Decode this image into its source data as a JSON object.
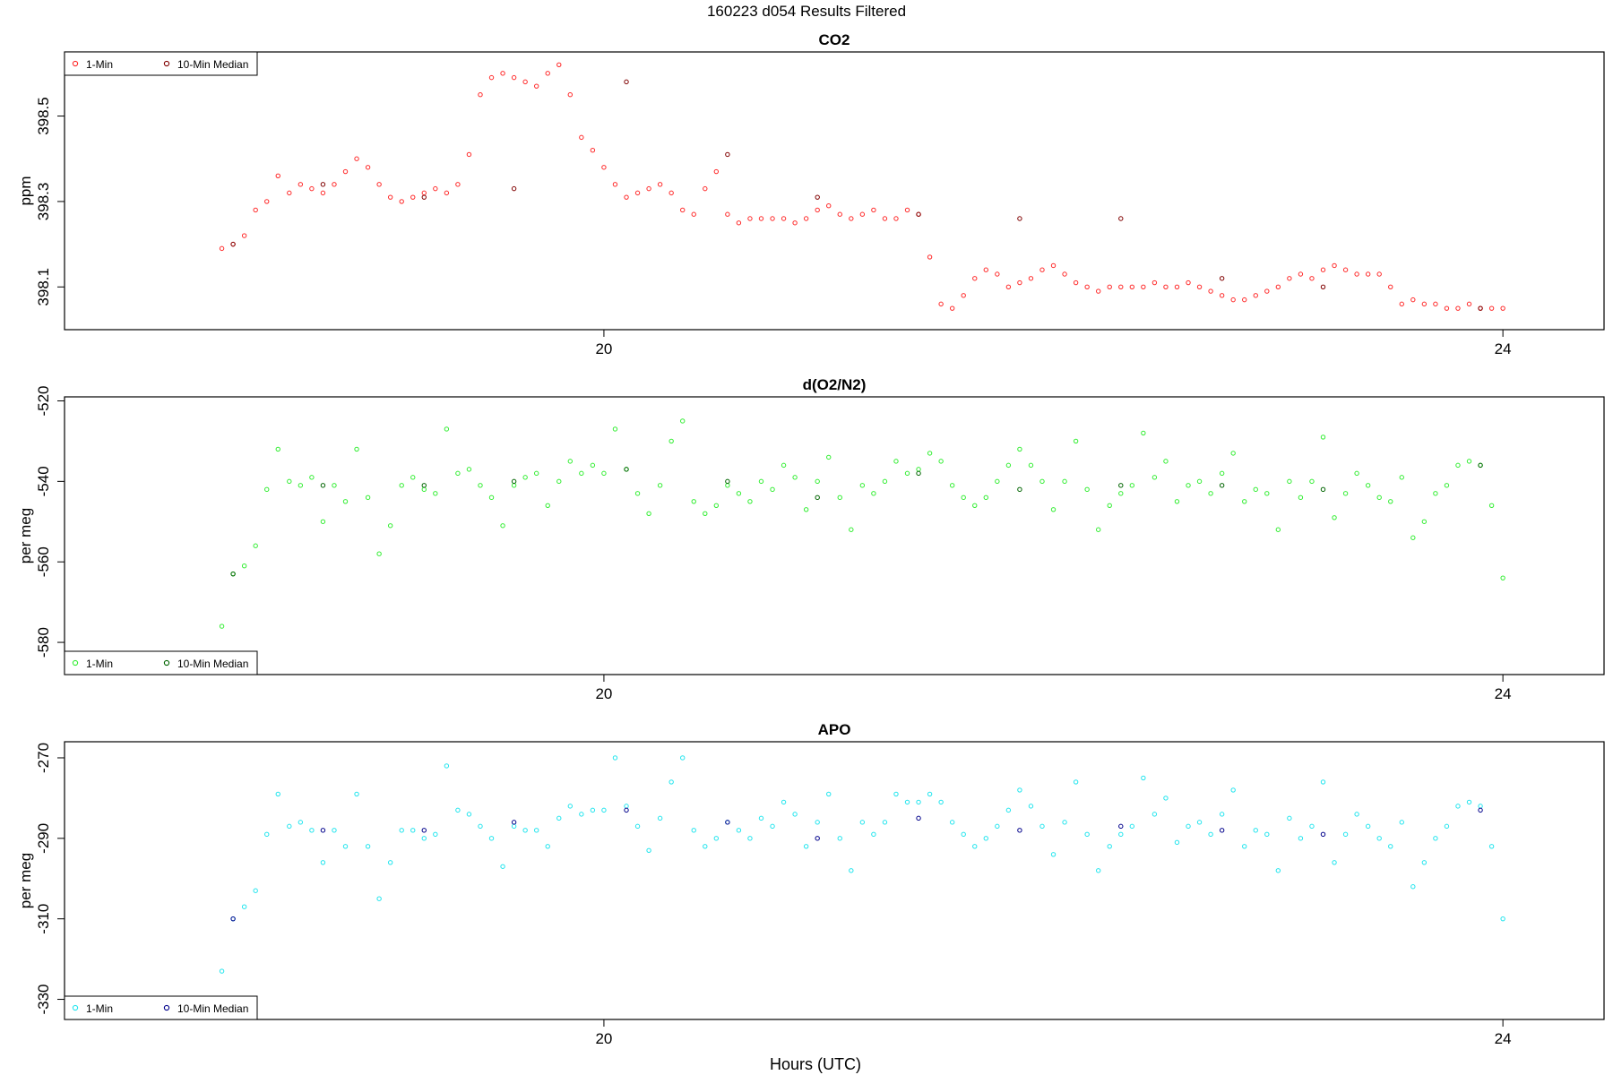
{
  "figure": {
    "title": "160223   d054   Results Filtered",
    "xlabel": "Hours (UTC)"
  },
  "chart_data": [
    {
      "type": "scatter",
      "title": "CO2",
      "ylabel": "ppm",
      "xlim": [
        17.6,
        24.45
      ],
      "ylim": [
        398.0,
        398.65
      ],
      "x_ticks": [
        20,
        24
      ],
      "y_ticks": [
        398.1,
        398.3,
        398.5
      ],
      "legend": {
        "position": "top-left",
        "entries": [
          "1-Min",
          "10-Min Median"
        ]
      },
      "colors": {
        "one_min": "#ff2a2a",
        "median": "#800000"
      },
      "series": [
        {
          "name": "1-Min",
          "x": [
            18.3,
            18.35,
            18.4,
            18.45,
            18.5,
            18.55,
            18.6,
            18.65,
            18.7,
            18.75,
            18.8,
            18.85,
            18.9,
            18.95,
            19.0,
            19.05,
            19.1,
            19.15,
            19.2,
            19.25,
            19.3,
            19.35,
            19.4,
            19.45,
            19.5,
            19.55,
            19.6,
            19.65,
            19.7,
            19.75,
            19.8,
            19.85,
            19.9,
            19.95,
            20.0,
            20.05,
            20.1,
            20.15,
            20.2,
            20.25,
            20.3,
            20.35,
            20.4,
            20.45,
            20.5,
            20.55,
            20.6,
            20.65,
            20.7,
            20.75,
            20.8,
            20.85,
            20.9,
            20.95,
            21.0,
            21.05,
            21.1,
            21.15,
            21.2,
            21.25,
            21.3,
            21.35,
            21.4,
            21.45,
            21.5,
            21.55,
            21.6,
            21.65,
            21.7,
            21.75,
            21.8,
            21.85,
            21.9,
            21.95,
            22.0,
            22.05,
            22.1,
            22.15,
            22.2,
            22.25,
            22.3,
            22.35,
            22.4,
            22.45,
            22.5,
            22.55,
            22.6,
            22.65,
            22.7,
            22.75,
            22.8,
            22.85,
            22.9,
            22.95,
            23.0,
            23.05,
            23.1,
            23.15,
            23.2,
            23.25,
            23.3,
            23.35,
            23.4,
            23.45,
            23.5,
            23.55,
            23.6,
            23.65,
            23.7,
            23.75,
            23.8,
            23.85,
            23.9,
            23.95,
            24.0
          ],
          "y": [
            398.19,
            398.2,
            398.22,
            398.28,
            398.3,
            398.36,
            398.32,
            398.34,
            398.33,
            398.32,
            398.34,
            398.37,
            398.4,
            398.38,
            398.34,
            398.31,
            398.3,
            398.31,
            398.32,
            398.33,
            398.32,
            398.34,
            398.41,
            398.55,
            398.59,
            398.6,
            398.59,
            398.58,
            398.57,
            398.6,
            398.62,
            398.55,
            398.45,
            398.42,
            398.38,
            398.34,
            398.31,
            398.32,
            398.33,
            398.34,
            398.32,
            398.28,
            398.27,
            398.33,
            398.37,
            398.27,
            398.25,
            398.26,
            398.26,
            398.26,
            398.26,
            398.25,
            398.26,
            398.28,
            398.29,
            398.27,
            398.26,
            398.27,
            398.28,
            398.26,
            398.26,
            398.28,
            398.27,
            398.17,
            398.06,
            398.05,
            398.08,
            398.12,
            398.14,
            398.13,
            398.1,
            398.11,
            398.12,
            398.14,
            398.15,
            398.13,
            398.11,
            398.1,
            398.09,
            398.1,
            398.1,
            398.1,
            398.1,
            398.11,
            398.1,
            398.1,
            398.11,
            398.1,
            398.09,
            398.08,
            398.07,
            398.07,
            398.08,
            398.09,
            398.1,
            398.12,
            398.13,
            398.12,
            398.14,
            398.15,
            398.14,
            398.13,
            398.13,
            398.13,
            398.1,
            398.06,
            398.07,
            398.06,
            398.06,
            398.05,
            398.05,
            398.06,
            398.05,
            398.05,
            398.05
          ]
        },
        {
          "name": "10-Min Median",
          "x": [
            18.35,
            18.75,
            19.2,
            19.6,
            20.1,
            20.55,
            20.95,
            21.4,
            21.85,
            22.3,
            22.75,
            23.2,
            23.9
          ],
          "y": [
            398.2,
            398.34,
            398.31,
            398.33,
            398.58,
            398.41,
            398.31,
            398.27,
            398.26,
            398.26,
            398.12,
            398.1,
            398.05
          ]
        }
      ]
    },
    {
      "type": "scatter",
      "title": "d(O2/N2)",
      "ylabel": "per meg",
      "xlim": [
        17.6,
        24.45
      ],
      "ylim": [
        -588,
        -519
      ],
      "x_ticks": [
        20,
        24
      ],
      "y_ticks": [
        -580,
        -560,
        -540,
        -520
      ],
      "legend": {
        "position": "bottom-left",
        "entries": [
          "1-Min",
          "10-Min Median"
        ]
      },
      "colors": {
        "one_min": "#33ee33",
        "median": "#006400"
      },
      "series": [
        {
          "name": "1-Min",
          "x": [
            18.3,
            18.35,
            18.4,
            18.45,
            18.5,
            18.55,
            18.6,
            18.65,
            18.7,
            18.75,
            18.8,
            18.85,
            18.9,
            18.95,
            19.0,
            19.05,
            19.1,
            19.15,
            19.2,
            19.25,
            19.3,
            19.35,
            19.4,
            19.45,
            19.5,
            19.55,
            19.6,
            19.65,
            19.7,
            19.75,
            19.8,
            19.85,
            19.9,
            19.95,
            20.0,
            20.05,
            20.1,
            20.15,
            20.2,
            20.25,
            20.3,
            20.35,
            20.4,
            20.45,
            20.5,
            20.55,
            20.6,
            20.65,
            20.7,
            20.75,
            20.8,
            20.85,
            20.9,
            20.95,
            21.0,
            21.05,
            21.1,
            21.15,
            21.2,
            21.25,
            21.3,
            21.35,
            21.4,
            21.45,
            21.5,
            21.55,
            21.6,
            21.65,
            21.7,
            21.75,
            21.8,
            21.85,
            21.9,
            21.95,
            22.0,
            22.05,
            22.1,
            22.15,
            22.2,
            22.25,
            22.3,
            22.35,
            22.4,
            22.45,
            22.5,
            22.55,
            22.6,
            22.65,
            22.7,
            22.75,
            22.8,
            22.85,
            22.9,
            22.95,
            23.0,
            23.05,
            23.1,
            23.15,
            23.2,
            23.25,
            23.3,
            23.35,
            23.4,
            23.45,
            23.5,
            23.55,
            23.6,
            23.65,
            23.7,
            23.75,
            23.8,
            23.85,
            23.9,
            23.95,
            24.0
          ],
          "y": [
            -576,
            -563,
            -561,
            -556,
            -542,
            -532,
            -540,
            -541,
            -539,
            -550,
            -541,
            -545,
            -532,
            -544,
            -558,
            -551,
            -541,
            -539,
            -542,
            -543,
            -527,
            -538,
            -537,
            -541,
            -544,
            -551,
            -541,
            -539,
            -538,
            -546,
            -540,
            -535,
            -538,
            -536,
            -538,
            -527,
            -537,
            -543,
            -548,
            -541,
            -530,
            -525,
            -545,
            -548,
            -546,
            -541,
            -543,
            -545,
            -540,
            -542,
            -536,
            -539,
            -547,
            -540,
            -534,
            -544,
            -552,
            -541,
            -543,
            -540,
            -535,
            -538,
            -537,
            -533,
            -535,
            -541,
            -544,
            -546,
            -544,
            -540,
            -536,
            -532,
            -536,
            -540,
            -547,
            -540,
            -530,
            -542,
            -552,
            -546,
            -543,
            -541,
            -528,
            -539,
            -535,
            -545,
            -541,
            -540,
            -543,
            -538,
            -533,
            -545,
            -542,
            -543,
            -552,
            -540,
            -544,
            -540,
            -529,
            -549,
            -543,
            -538,
            -541,
            -544,
            -545,
            -539,
            -554,
            -550,
            -543,
            -541,
            -536,
            -535,
            -536,
            -546,
            -564
          ]
        },
        {
          "name": "10-Min Median",
          "x": [
            18.35,
            18.75,
            19.2,
            19.6,
            20.1,
            20.55,
            20.95,
            21.4,
            21.85,
            22.3,
            22.75,
            23.2,
            23.9
          ],
          "y": [
            -563,
            -541,
            -541,
            -540,
            -537,
            -540,
            -544,
            -538,
            -542,
            -541,
            -541,
            -542,
            -536
          ]
        }
      ]
    },
    {
      "type": "scatter",
      "title": "APO",
      "ylabel": "per meg",
      "xlim": [
        17.6,
        24.45
      ],
      "ylim": [
        -335,
        -266
      ],
      "x_ticks": [
        20,
        24
      ],
      "y_ticks": [
        -330,
        -310,
        -290,
        -270
      ],
      "legend": {
        "position": "bottom-left",
        "entries": [
          "1-Min",
          "10-Min Median"
        ]
      },
      "colors": {
        "one_min": "#22e5ee",
        "median": "#00008b"
      },
      "series": [
        {
          "name": "1-Min",
          "x": [
            18.3,
            18.35,
            18.4,
            18.45,
            18.5,
            18.55,
            18.6,
            18.65,
            18.7,
            18.75,
            18.8,
            18.85,
            18.9,
            18.95,
            19.0,
            19.05,
            19.1,
            19.15,
            19.2,
            19.25,
            19.3,
            19.35,
            19.4,
            19.45,
            19.5,
            19.55,
            19.6,
            19.65,
            19.7,
            19.75,
            19.8,
            19.85,
            19.9,
            19.95,
            20.0,
            20.05,
            20.1,
            20.15,
            20.2,
            20.25,
            20.3,
            20.35,
            20.4,
            20.45,
            20.5,
            20.55,
            20.6,
            20.65,
            20.7,
            20.75,
            20.8,
            20.85,
            20.9,
            20.95,
            21.0,
            21.05,
            21.1,
            21.15,
            21.2,
            21.25,
            21.3,
            21.35,
            21.4,
            21.45,
            21.5,
            21.55,
            21.6,
            21.65,
            21.7,
            21.75,
            21.8,
            21.85,
            21.9,
            21.95,
            22.0,
            22.05,
            22.1,
            22.15,
            22.2,
            22.25,
            22.3,
            22.35,
            22.4,
            22.45,
            22.5,
            22.55,
            22.6,
            22.65,
            22.7,
            22.75,
            22.8,
            22.85,
            22.9,
            22.95,
            23.0,
            23.05,
            23.1,
            23.15,
            23.2,
            23.25,
            23.3,
            23.35,
            23.4,
            23.45,
            23.5,
            23.55,
            23.6,
            23.65,
            23.7,
            23.75,
            23.8,
            23.85,
            23.9,
            23.95,
            24.0
          ],
          "y": [
            -323,
            -310,
            -307,
            -303,
            -289,
            -279,
            -287,
            -286,
            -288,
            -296,
            -288,
            -292,
            -279,
            -292,
            -305,
            -296,
            -288,
            -288,
            -290,
            -289,
            -272,
            -283,
            -284,
            -287,
            -290,
            -297,
            -287,
            -288,
            -288,
            -292,
            -285,
            -282,
            -284,
            -283,
            -283,
            -270,
            -282,
            -287,
            -293,
            -285,
            -276,
            -270,
            -288,
            -292,
            -290,
            -286,
            -288,
            -290,
            -285,
            -287,
            -281,
            -284,
            -292,
            -286,
            -279,
            -290,
            -298,
            -286,
            -289,
            -286,
            -279,
            -281,
            -281,
            -279,
            -281,
            -286,
            -289,
            -292,
            -290,
            -287,
            -283,
            -278,
            -282,
            -287,
            -294,
            -286,
            -276,
            -289,
            -298,
            -292,
            -289,
            -287,
            -275,
            -284,
            -280,
            -291,
            -287,
            -286,
            -289,
            -284,
            -278,
            -292,
            -288,
            -289,
            -298,
            -285,
            -290,
            -287,
            -276,
            -296,
            -289,
            -284,
            -287,
            -290,
            -292,
            -286,
            -302,
            -296,
            -290,
            -287,
            -282,
            -281,
            -282,
            -292,
            -310
          ]
        },
        {
          "name": "10-Min Median",
          "x": [
            18.35,
            18.75,
            19.2,
            19.6,
            20.1,
            20.55,
            20.95,
            21.4,
            21.85,
            22.3,
            22.75,
            23.2,
            23.9
          ],
          "y": [
            -310,
            -288,
            -288,
            -286,
            -283,
            -286,
            -290,
            -285,
            -288,
            -287,
            -288,
            -289,
            -283
          ]
        }
      ]
    }
  ]
}
